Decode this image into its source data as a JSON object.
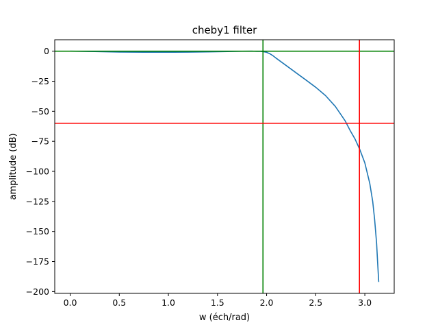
{
  "chart_data": {
    "type": "line",
    "title": "cheby1 filter",
    "xlabel": "w (éch/rad)",
    "ylabel": "amplitude (dB)",
    "xlim": [
      -0.157,
      3.299
    ],
    "ylim": [
      -201.5,
      9.5
    ],
    "grid": false,
    "x_ticks": [
      0.0,
      0.5,
      1.0,
      1.5,
      2.0,
      2.5,
      3.0
    ],
    "x_tick_labels": [
      "0.0",
      "0.5",
      "1.0",
      "1.5",
      "2.0",
      "2.5",
      "3.0"
    ],
    "y_ticks": [
      0,
      -25,
      -50,
      -75,
      -100,
      -125,
      -150,
      -175,
      -200
    ],
    "y_tick_labels": [
      "0",
      "−25",
      "−50",
      "−75",
      "−100",
      "−125",
      "−150",
      "−175",
      "−200"
    ],
    "series": [
      {
        "color": "#1f77b4",
        "x": [
          0.0,
          0.25,
          0.5,
          0.75,
          1.0,
          1.2,
          1.4,
          1.6,
          1.75,
          1.85,
          1.9,
          1.94,
          1.97,
          2.0,
          2.03,
          2.06,
          2.1,
          2.2,
          2.3,
          2.4,
          2.5,
          2.6,
          2.7,
          2.75,
          2.8,
          2.85,
          2.9,
          2.95,
          3.0,
          3.05,
          3.08,
          3.1,
          3.12,
          3.13,
          3.1416
        ],
        "y": [
          0.0,
          -0.3,
          -0.7,
          -0.9,
          -0.9,
          -0.8,
          -0.6,
          -0.3,
          -0.1,
          0.0,
          -0.2,
          -0.2,
          -0.5,
          -1.0,
          -2.0,
          -3.5,
          -6,
          -12,
          -18,
          -24,
          -30,
          -37,
          -46,
          -52,
          -58,
          -66,
          -73,
          -82,
          -93,
          -110,
          -125,
          -140,
          -160,
          -175,
          -192
        ]
      }
    ],
    "reference_lines": [
      {
        "orientation": "horizontal",
        "value": 0,
        "color": "#008000"
      },
      {
        "orientation": "vertical",
        "value": 1.963,
        "color": "#008000"
      },
      {
        "orientation": "horizontal",
        "value": -60,
        "color": "#ff0000"
      },
      {
        "orientation": "vertical",
        "value": 2.945,
        "color": "#ff0000"
      }
    ]
  }
}
